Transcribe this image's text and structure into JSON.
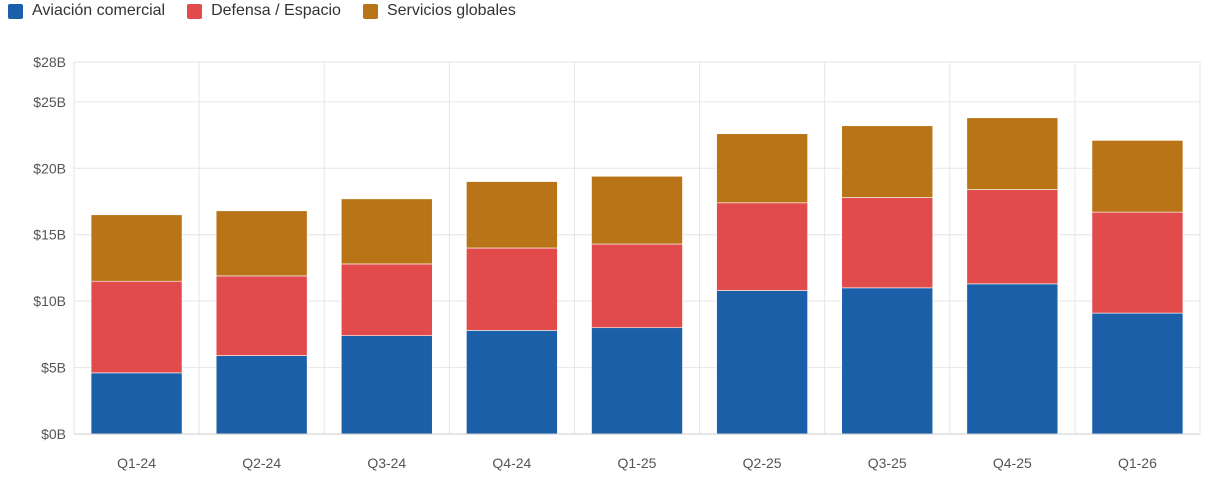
{
  "chart_data": {
    "type": "bar",
    "stacked": true,
    "title": "",
    "xlabel": "",
    "ylabel": "",
    "categories": [
      "Q1-24",
      "Q2-24",
      "Q3-24",
      "Q4-24",
      "Q1-25",
      "Q2-25",
      "Q3-25",
      "Q4-25",
      "Q1-26"
    ],
    "series": [
      {
        "name": "Aviación comercial",
        "color": "#1b5fa8",
        "values": [
          4.6,
          5.9,
          7.4,
          7.8,
          8.0,
          10.8,
          11.0,
          11.3,
          9.1
        ]
      },
      {
        "name": "Defensa / Espacio",
        "color": "#e24b4b",
        "values": [
          6.9,
          6.0,
          5.4,
          6.2,
          6.3,
          6.6,
          6.8,
          7.1,
          7.6
        ]
      },
      {
        "name": "Servicios globales",
        "color": "#b87416",
        "values": [
          5.0,
          4.9,
          4.9,
          5.0,
          5.1,
          5.2,
          5.4,
          5.4,
          5.4
        ]
      }
    ],
    "ylim": [
      0,
      28
    ],
    "yticks": [
      0,
      5,
      10,
      15,
      20,
      25,
      28
    ],
    "ytick_labels": [
      "$0B",
      "$5B",
      "$10B",
      "$15B",
      "$20B",
      "$25B",
      "$28B"
    ],
    "grid": true,
    "legend_position": "top-left"
  }
}
